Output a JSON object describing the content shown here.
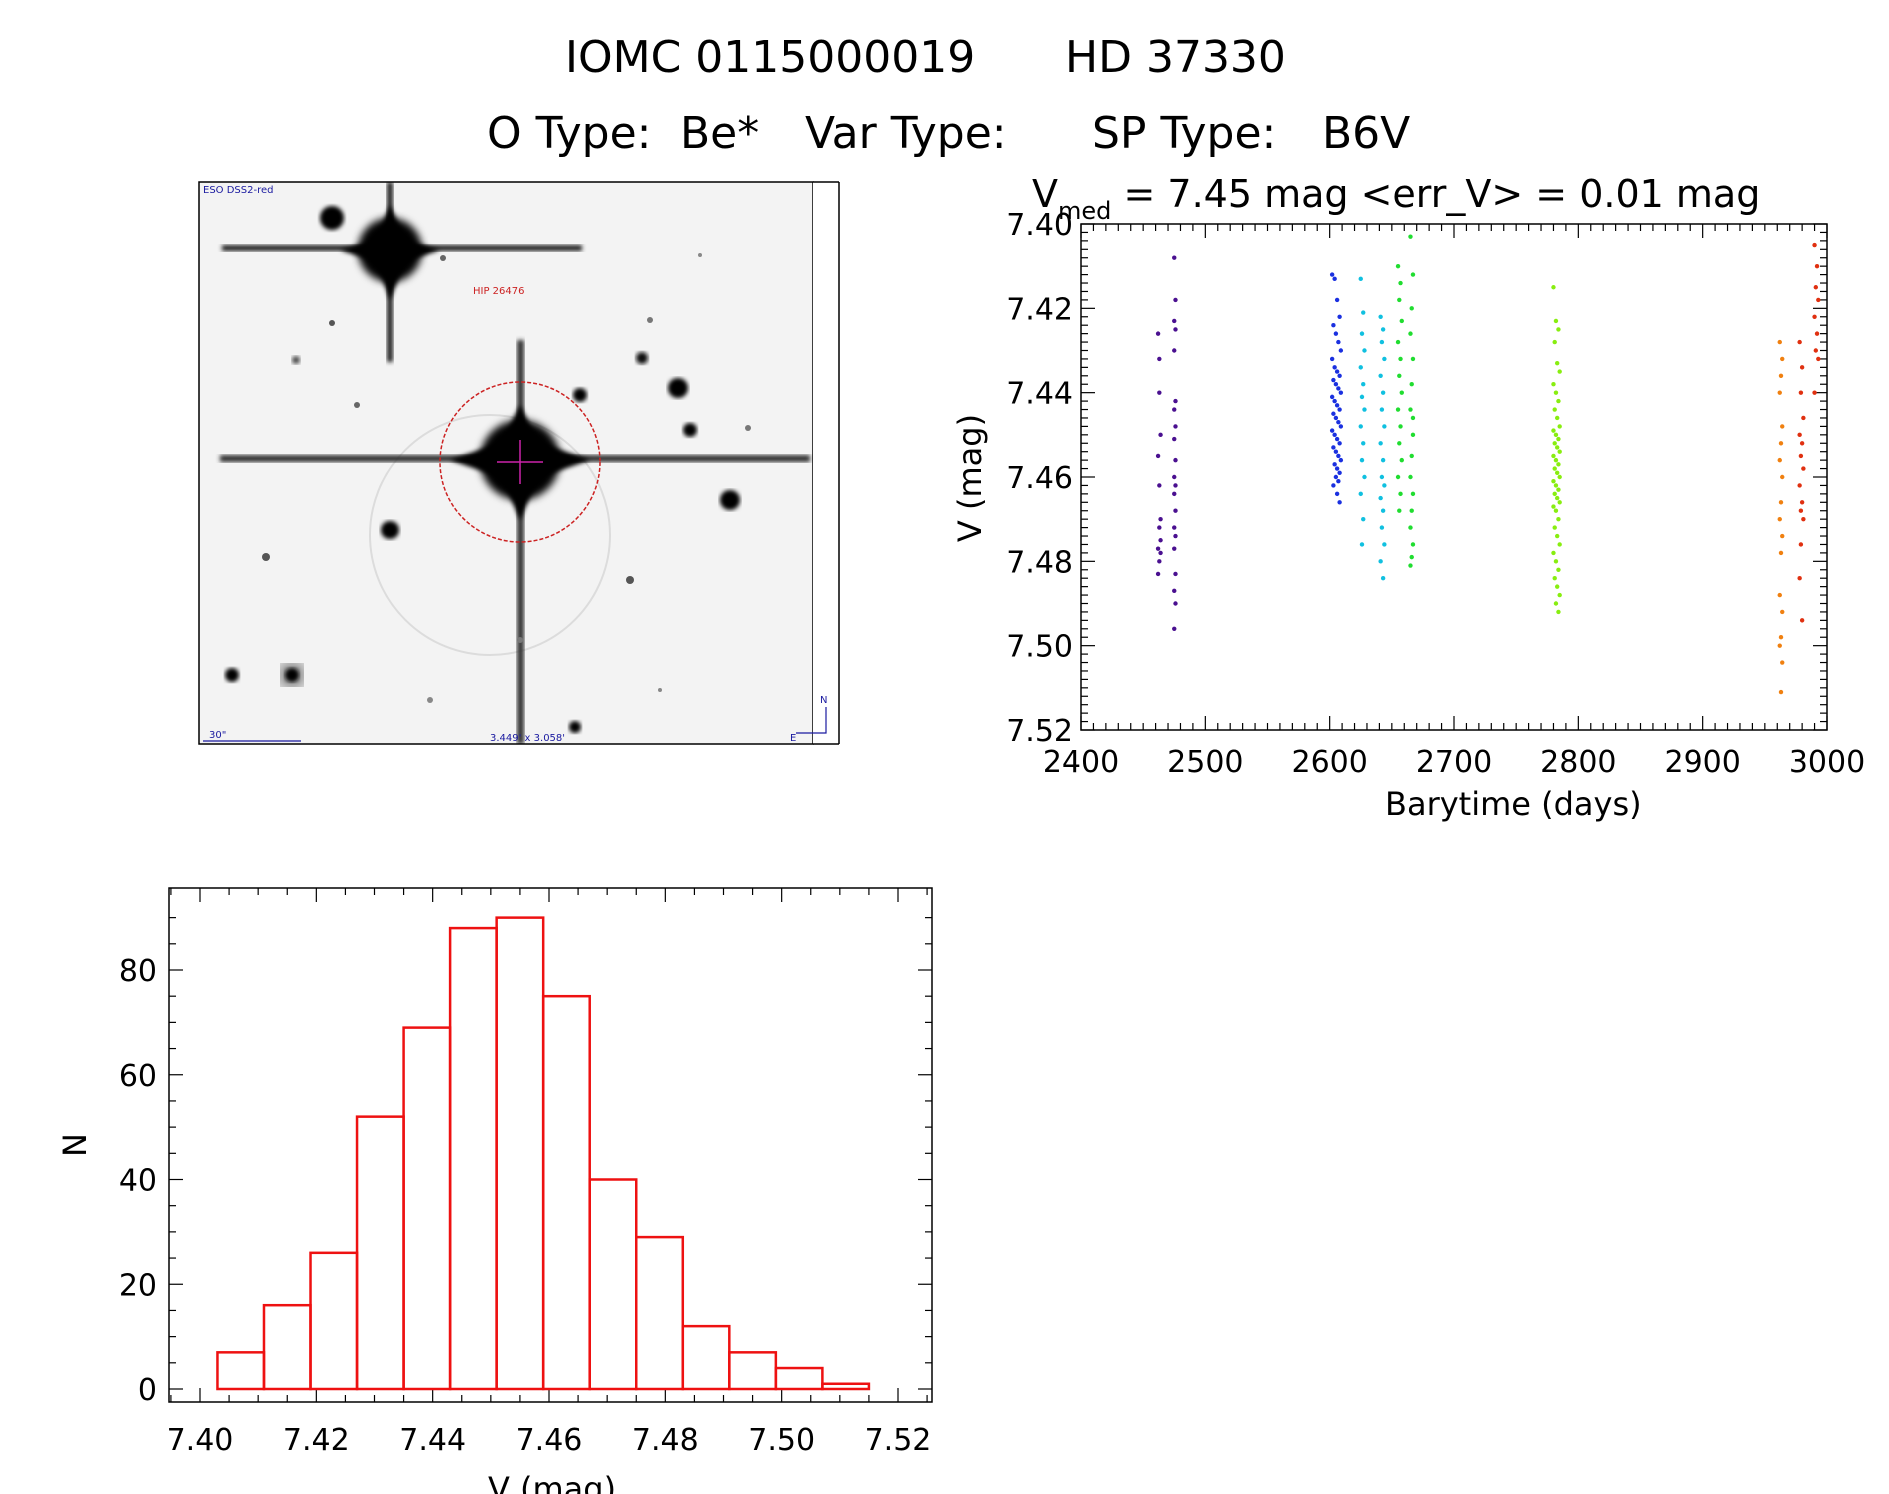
{
  "header": {
    "line1_id": "IOMC 0115000019",
    "line1_name": "HD  37330",
    "line2_otype_label": "O Type:",
    "line2_otype_value": "Be*",
    "line2_vartype_label": "Var Type:",
    "line2_sptype_label": "SP Type:",
    "line2_sptype_value": "B6V"
  },
  "finder_image": {
    "survey_label": "ESO DSS2-red",
    "target_label": "HIP 26476",
    "scale_label": "30\"",
    "fov_label": "3.449' x 3.058'",
    "north_label": "N",
    "east_label": "E",
    "colors": {
      "circle": "#cc2222",
      "labels_blue": "#1a1aa0"
    }
  },
  "chart_data": [
    {
      "type": "scatter",
      "name": "light-curve",
      "title_prefix": "V",
      "title_subscript": "med",
      "title_rest": " = 7.45 mag <err_V> = 0.01 mag",
      "xlabel": "Barytime (days)",
      "ylabel": "V (mag)",
      "xlim": [
        2400,
        3000
      ],
      "ylim": [
        7.52,
        7.4
      ],
      "y_inverted": true,
      "xticks": [
        2400,
        2500,
        2600,
        2700,
        2800,
        2900,
        3000
      ],
      "xtick_labels": [
        "2400",
        "2500",
        "2600",
        "2700",
        "2800",
        "2900",
        "3000"
      ],
      "yticks": [
        7.4,
        7.42,
        7.44,
        7.46,
        7.48,
        7.5,
        7.52
      ],
      "ytick_labels": [
        "7.40",
        "7.42",
        "7.44",
        "7.46",
        "7.48",
        "7.50",
        "7.52"
      ],
      "series": [
        {
          "name": "group-1",
          "color": "#4a1090",
          "x": [
            2462,
            2463,
            2463,
            2464,
            2462,
            2463,
            2464,
            2463,
            2462,
            2464,
            2463,
            2462,
            2464,
            2475,
            2476,
            2475,
            2476,
            2475,
            2476,
            2475,
            2476,
            2475,
            2476,
            2475,
            2476,
            2475,
            2476,
            2475,
            2476,
            2475,
            2476,
            2475,
            2476,
            2475
          ],
          "y": [
            7.426,
            7.432,
            7.44,
            7.45,
            7.455,
            7.462,
            7.47,
            7.472,
            7.477,
            7.478,
            7.48,
            7.483,
            7.475,
            7.408,
            7.418,
            7.423,
            7.425,
            7.43,
            7.442,
            7.444,
            7.448,
            7.451,
            7.456,
            7.46,
            7.462,
            7.464,
            7.468,
            7.472,
            7.474,
            7.477,
            7.483,
            7.487,
            7.49,
            7.496
          ]
        },
        {
          "name": "group-2",
          "color": "#1a30e0",
          "x": [
            2602,
            2604,
            2606,
            2608,
            2603,
            2605,
            2607,
            2609,
            2602,
            2604,
            2606,
            2608,
            2603,
            2605,
            2607,
            2609,
            2602,
            2604,
            2606,
            2608,
            2603,
            2605,
            2607,
            2609,
            2602,
            2604,
            2606,
            2608,
            2603,
            2605,
            2607,
            2609,
            2604,
            2606,
            2608,
            2605,
            2607,
            2603,
            2606,
            2608
          ],
          "y": [
            7.412,
            7.413,
            7.418,
            7.422,
            7.424,
            7.426,
            7.428,
            7.43,
            7.432,
            7.434,
            7.435,
            7.436,
            7.437,
            7.438,
            7.439,
            7.44,
            7.441,
            7.442,
            7.443,
            7.444,
            7.445,
            7.446,
            7.447,
            7.448,
            7.449,
            7.45,
            7.451,
            7.452,
            7.453,
            7.454,
            7.455,
            7.456,
            7.457,
            7.458,
            7.459,
            7.46,
            7.461,
            7.462,
            7.464,
            7.466
          ]
        },
        {
          "name": "group-3",
          "color": "#10c0e0",
          "x": [
            2625,
            2627,
            2626,
            2628,
            2625,
            2627,
            2626,
            2628,
            2625,
            2627,
            2626,
            2628,
            2625,
            2627,
            2626,
            2641,
            2643,
            2642,
            2644,
            2641,
            2643,
            2642,
            2644,
            2641,
            2643,
            2642,
            2644,
            2641,
            2643,
            2642,
            2644,
            2641,
            2643
          ],
          "y": [
            7.413,
            7.421,
            7.426,
            7.43,
            7.434,
            7.438,
            7.441,
            7.444,
            7.448,
            7.452,
            7.456,
            7.46,
            7.464,
            7.47,
            7.476,
            7.422,
            7.425,
            7.428,
            7.432,
            7.436,
            7.44,
            7.444,
            7.448,
            7.452,
            7.456,
            7.46,
            7.462,
            7.465,
            7.468,
            7.472,
            7.476,
            7.48,
            7.484
          ]
        },
        {
          "name": "group-4",
          "color": "#20dd30",
          "x": [
            2655,
            2657,
            2656,
            2658,
            2655,
            2657,
            2656,
            2658,
            2655,
            2657,
            2656,
            2658,
            2655,
            2657,
            2656,
            2665,
            2667,
            2666,
            2665,
            2667,
            2666,
            2665,
            2667,
            2666,
            2665,
            2667,
            2666,
            2665,
            2667,
            2666,
            2665,
            2667
          ],
          "y": [
            7.41,
            7.414,
            7.418,
            7.423,
            7.428,
            7.432,
            7.436,
            7.44,
            7.444,
            7.448,
            7.452,
            7.456,
            7.46,
            7.464,
            7.468,
            7.403,
            7.412,
            7.42,
            7.426,
            7.432,
            7.438,
            7.444,
            7.45,
            7.455,
            7.46,
            7.464,
            7.468,
            7.472,
            7.476,
            7.479,
            7.481,
            7.446
          ]
        },
        {
          "name": "group-5",
          "color": "#88ee10",
          "x": [
            2780,
            2782,
            2784,
            2781,
            2783,
            2785,
            2780,
            2782,
            2784,
            2781,
            2783,
            2785,
            2780,
            2782,
            2784,
            2781,
            2783,
            2785,
            2780,
            2782,
            2784,
            2781,
            2783,
            2785,
            2780,
            2782,
            2784,
            2781,
            2783,
            2785,
            2780,
            2782,
            2784,
            2781,
            2783,
            2785,
            2780,
            2782,
            2784,
            2781,
            2783,
            2785,
            2782,
            2784
          ],
          "y": [
            7.415,
            7.423,
            7.425,
            7.428,
            7.433,
            7.435,
            7.438,
            7.44,
            7.442,
            7.444,
            7.446,
            7.448,
            7.449,
            7.45,
            7.451,
            7.452,
            7.453,
            7.454,
            7.455,
            7.456,
            7.457,
            7.458,
            7.459,
            7.46,
            7.461,
            7.462,
            7.463,
            7.464,
            7.465,
            7.466,
            7.467,
            7.468,
            7.47,
            7.472,
            7.474,
            7.476,
            7.478,
            7.48,
            7.482,
            7.484,
            7.486,
            7.488,
            7.49,
            7.492
          ]
        },
        {
          "name": "group-6",
          "color": "#f08010",
          "x": [
            2962,
            2964,
            2963,
            2962,
            2964,
            2963,
            2962,
            2964,
            2963,
            2962,
            2964,
            2963,
            2962,
            2964,
            2963,
            2962,
            2964,
            2963
          ],
          "y": [
            7.428,
            7.432,
            7.436,
            7.44,
            7.448,
            7.452,
            7.456,
            7.46,
            7.466,
            7.47,
            7.474,
            7.478,
            7.488,
            7.492,
            7.498,
            7.5,
            7.504,
            7.511
          ]
        },
        {
          "name": "group-7",
          "color": "#e03010",
          "x": [
            2978,
            2980,
            2979,
            2981,
            2978,
            2980,
            2979,
            2981,
            2978,
            2980,
            2979,
            2981,
            2978,
            2980,
            2979,
            2990,
            2992,
            2991,
            2993,
            2990,
            2992,
            2991,
            2993,
            2990
          ],
          "y": [
            7.428,
            7.434,
            7.44,
            7.446,
            7.45,
            7.452,
            7.455,
            7.458,
            7.462,
            7.466,
            7.468,
            7.47,
            7.484,
            7.494,
            7.476,
            7.405,
            7.41,
            7.415,
            7.418,
            7.422,
            7.426,
            7.43,
            7.432,
            7.44
          ]
        }
      ]
    },
    {
      "type": "bar",
      "name": "histogram",
      "style": "step-outline",
      "color": "#ee1111",
      "xlabel": "V (mag)",
      "ylabel": "N",
      "xlim": [
        7.4,
        7.52
      ],
      "ylim": [
        0,
        93
      ],
      "xticks": [
        7.4,
        7.42,
        7.44,
        7.46,
        7.48,
        7.5,
        7.52
      ],
      "xtick_labels": [
        "7.40",
        "7.42",
        "7.44",
        "7.46",
        "7.48",
        "7.50",
        "7.52"
      ],
      "yticks": [
        0,
        20,
        40,
        60,
        80
      ],
      "ytick_labels": [
        "0",
        "20",
        "40",
        "60",
        "80"
      ],
      "bin_edges": [
        7.403,
        7.411,
        7.419,
        7.427,
        7.435,
        7.443,
        7.451,
        7.459,
        7.467,
        7.475,
        7.483,
        7.491,
        7.499,
        7.507,
        7.515
      ],
      "values": [
        7,
        16,
        26,
        52,
        69,
        88,
        90,
        75,
        40,
        29,
        12,
        7,
        4,
        1
      ]
    }
  ]
}
